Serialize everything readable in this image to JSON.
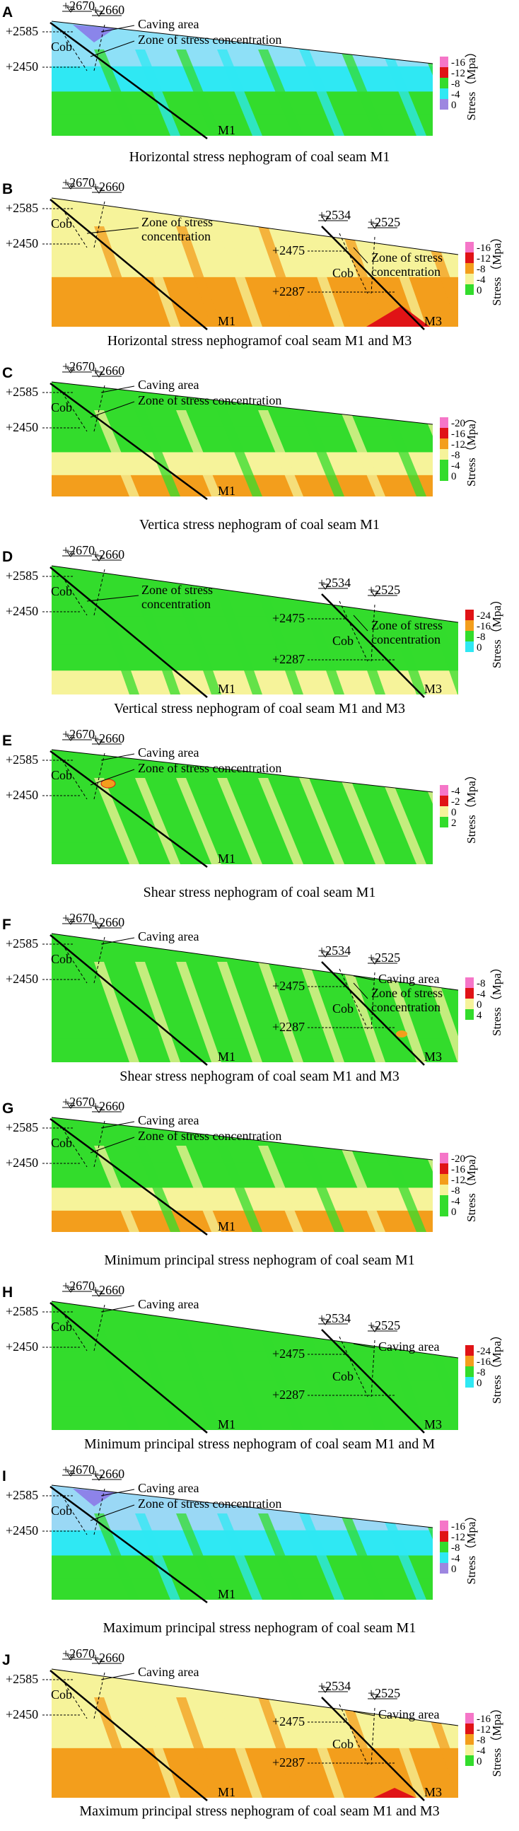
{
  "colors": {
    "blue_light": "#9ad8f5",
    "cyan": "#2fe8f3",
    "green": "#33dc2c",
    "yellow_pale": "#f6f39a",
    "orange": "#f39e1c",
    "red": "#e01316",
    "pink": "#f576c8",
    "purple": "#9d86e0",
    "violet": "#8a6ee6"
  },
  "legend_title": "Stress（Mpa）",
  "panels": [
    {
      "letter": "A",
      "caption": "Horizontal stress nephogram of coal seam M1",
      "legend": [
        "-16",
        "-12",
        "-8",
        "-4",
        "0"
      ],
      "legend_colors": [
        "#f576c8",
        "#e01316",
        "#33dc2c",
        "#2fe8f3",
        "#9d86e0"
      ]
    },
    {
      "letter": "B",
      "caption": "Horizontal stress nephogramof coal seam M1 and M3",
      "legend": [
        "-16",
        "-12",
        "-8",
        "-4",
        "0"
      ],
      "legend_colors": [
        "#f576c8",
        "#e01316",
        "#f39e1c",
        "#f6f39a",
        "#33dc2c"
      ]
    },
    {
      "letter": "C",
      "caption": "Vertica stress nephogram of coal seam M1",
      "legend": [
        "-20",
        "-16",
        "-12",
        "-8",
        "-4",
        "0"
      ],
      "legend_colors": [
        "#f576c8",
        "#e01316",
        "#f39e1c",
        "#f6f39a",
        "#33dc2c",
        "#33dc2c"
      ]
    },
    {
      "letter": "D",
      "caption": "Vertical stress nephogram of coal seam M1 and M3",
      "legend": [
        "-24",
        "-16",
        "-8",
        "0"
      ],
      "legend_colors": [
        "#e01316",
        "#f39e1c",
        "#33dc2c",
        "#2fe8f3"
      ]
    },
    {
      "letter": "E",
      "caption": "Shear stress nephogram of coal seam M1",
      "legend": [
        "-4",
        "-2",
        "0",
        "2"
      ],
      "legend_colors": [
        "#f576c8",
        "#e01316",
        "#f6f39a",
        "#33dc2c"
      ]
    },
    {
      "letter": "F",
      "caption": "Shear stress nephogram of coal seam M1 and M3",
      "legend": [
        "-8",
        "-4",
        "0",
        "4"
      ],
      "legend_colors": [
        "#f576c8",
        "#e01316",
        "#f6f39a",
        "#33dc2c"
      ]
    },
    {
      "letter": "G",
      "caption": "Minimum principal stress nephogram of coal seam M1",
      "legend": [
        "-20",
        "-16",
        "-12",
        "-8",
        "-4",
        "0"
      ],
      "legend_colors": [
        "#f576c8",
        "#e01316",
        "#f39e1c",
        "#f6f39a",
        "#33dc2c",
        "#33dc2c"
      ]
    },
    {
      "letter": "H",
      "caption": "Minimum principal stress nephogram of coal seam M1 and M",
      "legend": [
        "-24",
        "-16",
        "-8",
        "0"
      ],
      "legend_colors": [
        "#e01316",
        "#f39e1c",
        "#33dc2c",
        "#2fe8f3"
      ]
    },
    {
      "letter": "I",
      "caption": "Maximum principal stress nephogram of coal seam M1",
      "legend": [
        "-16",
        "-12",
        "-8",
        "-4",
        "0"
      ],
      "legend_colors": [
        "#f576c8",
        "#e01316",
        "#33dc2c",
        "#2fe8f3",
        "#9d86e0"
      ]
    },
    {
      "letter": "J",
      "caption": "Maximum principal stress nephogram of coal seam M1 and M3",
      "legend": [
        "-16",
        "-12",
        "-8",
        "-4",
        "0"
      ],
      "legend_colors": [
        "#f576c8",
        "#e01316",
        "#f39e1c",
        "#f6f39a",
        "#33dc2c"
      ]
    }
  ],
  "labels": {
    "elev_2670": "+2670",
    "elev_2660": "+2660",
    "elev_2585": "+2585",
    "elev_2450": "+2450",
    "elev_2534": "+2534",
    "elev_2525": "+2525",
    "elev_2475": "+2475",
    "elev_2287": "+2287",
    "cob": "Cob",
    "caving_area": "Caving area",
    "zone_full": "Zone of stress concentration",
    "zone_line1": "Zone of stress",
    "zone_line2": "concentration",
    "m1": "M1",
    "m3": "M3"
  }
}
